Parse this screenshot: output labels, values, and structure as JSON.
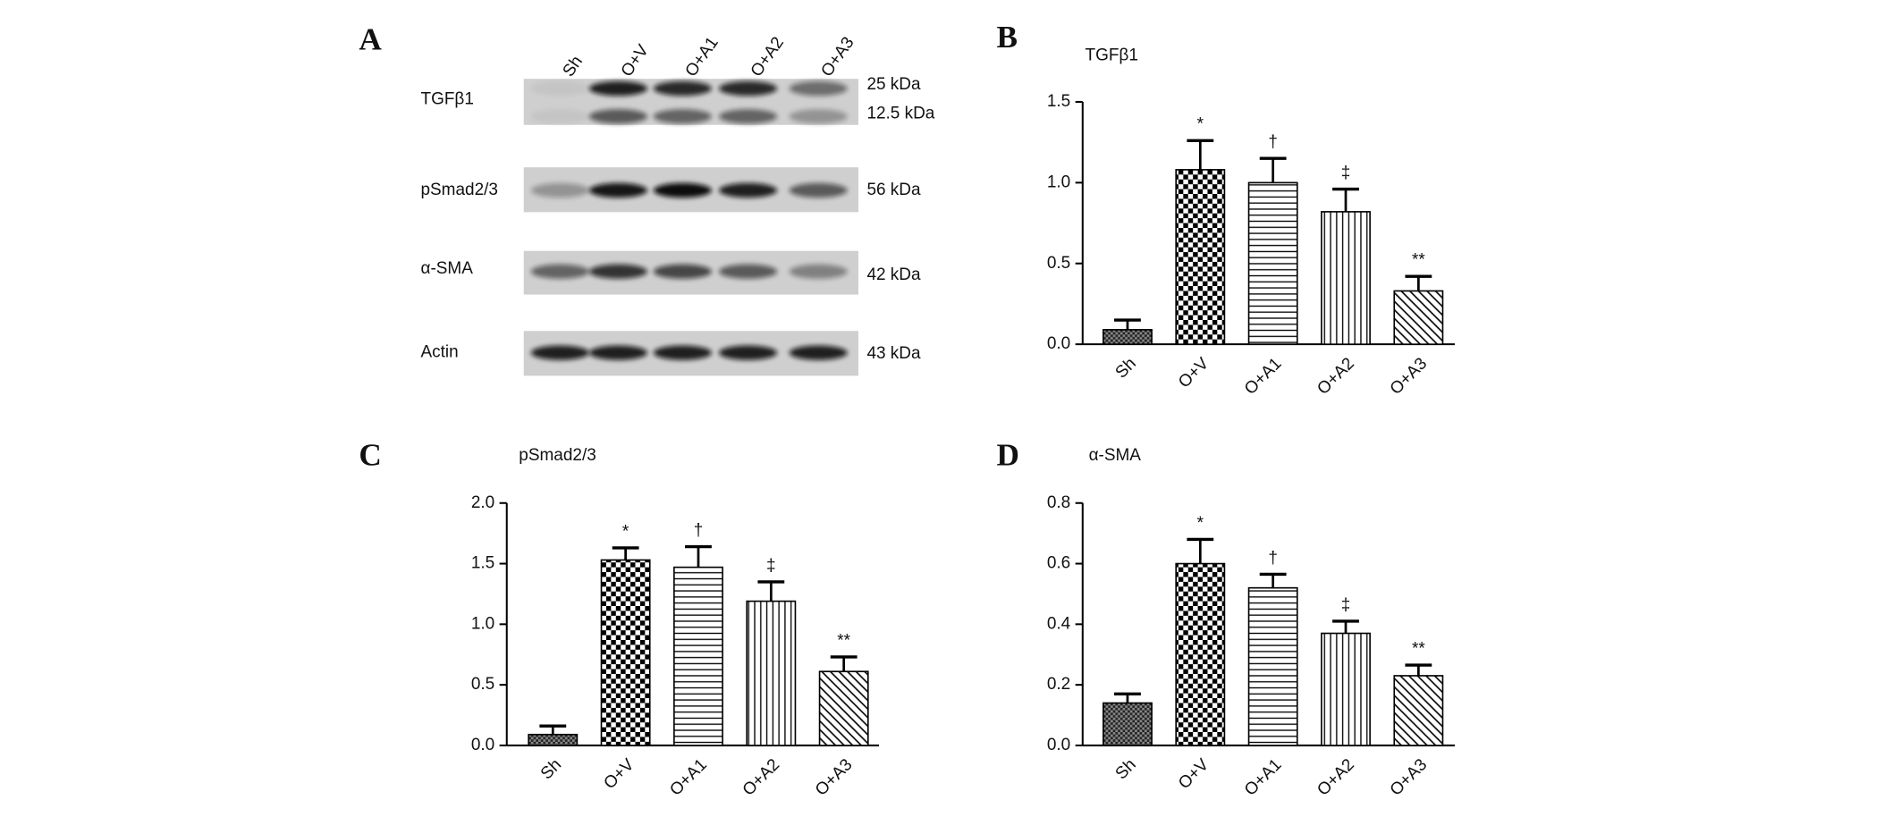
{
  "blot": {
    "panel_label": "A",
    "lanes": [
      "Sh",
      "O+V",
      "O+A1",
      "O+A2",
      "O+A3"
    ],
    "rows": [
      {
        "protein": "TGFβ1",
        "sizes": [
          "25 kDa",
          "12.5 kDa"
        ]
      },
      {
        "protein": "pSmad2/3",
        "sizes": [
          "56 kDa"
        ]
      },
      {
        "protein": "α-SMA",
        "sizes": [
          "42 kDa"
        ]
      },
      {
        "protein": "Actin",
        "sizes": [
          "43 kDa"
        ]
      }
    ]
  },
  "chart_data": [
    {
      "type": "bar",
      "panel_label": "B",
      "title": "TGFβ1",
      "categories": [
        "Sh",
        "O+V",
        "O+A1",
        "O+A2",
        "O+A3"
      ],
      "values": [
        0.09,
        1.08,
        1.0,
        0.82,
        0.33
      ],
      "errors": [
        0.06,
        0.18,
        0.15,
        0.14,
        0.09
      ],
      "annotations": [
        null,
        "*",
        "†",
        "‡",
        "**"
      ],
      "color": "#000000",
      "patterns": [
        "fine-check",
        "checker",
        "horizontal",
        "vertical",
        "diagonal"
      ],
      "ylim": [
        0,
        1.5
      ],
      "yticks": [
        {
          "value": 0,
          "label": "0.0"
        },
        {
          "value": 0.5,
          "label": "0.5"
        },
        {
          "value": 1,
          "label": "1.0"
        },
        {
          "value": 1.5,
          "label": "1.5"
        }
      ]
    },
    {
      "type": "bar",
      "panel_label": "C",
      "title": "pSmad2/3",
      "categories": [
        "Sh",
        "O+V",
        "O+A1",
        "O+A2",
        "O+A3"
      ],
      "values": [
        0.09,
        1.53,
        1.47,
        1.19,
        0.61
      ],
      "errors": [
        0.07,
        0.1,
        0.17,
        0.16,
        0.12
      ],
      "annotations": [
        null,
        "*",
        "†",
        "‡",
        "**"
      ],
      "color": "#000000",
      "patterns": [
        "fine-check",
        "checker",
        "horizontal",
        "vertical",
        "diagonal"
      ],
      "ylim": [
        0,
        2
      ],
      "yticks": [
        {
          "value": 0,
          "label": "0.0"
        },
        {
          "value": 0.5,
          "label": "0.5"
        },
        {
          "value": 1,
          "label": "1.0"
        },
        {
          "value": 1.5,
          "label": "1.5"
        },
        {
          "value": 2,
          "label": "2.0"
        }
      ]
    },
    {
      "type": "bar",
      "panel_label": "D",
      "title": "α-SMA",
      "categories": [
        "Sh",
        "O+V",
        "O+A1",
        "O+A2",
        "O+A3"
      ],
      "values": [
        0.14,
        0.6,
        0.52,
        0.37,
        0.23
      ],
      "errors": [
        0.03,
        0.08,
        0.045,
        0.04,
        0.035
      ],
      "annotations": [
        null,
        "*",
        "†",
        "‡",
        "**"
      ],
      "color": "#000000",
      "patterns": [
        "fine-check",
        "checker",
        "horizontal",
        "vertical",
        "diagonal"
      ],
      "ylim": [
        0,
        0.8
      ],
      "yticks": [
        {
          "value": 0,
          "label": "0.0"
        },
        {
          "value": 0.2,
          "label": "0.2"
        },
        {
          "value": 0.4,
          "label": "0.4"
        },
        {
          "value": 0.6,
          "label": "0.6"
        },
        {
          "value": 0.8,
          "label": "0.8"
        }
      ]
    }
  ]
}
